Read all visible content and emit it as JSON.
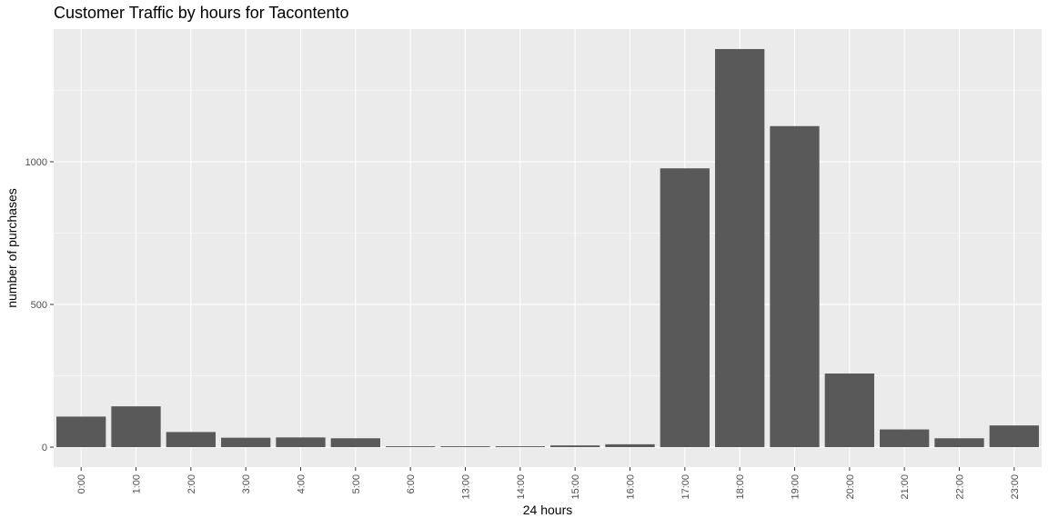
{
  "chart_data": {
    "type": "bar",
    "title": "Customer Traffic by hours for Tacontento",
    "xlabel": "24 hours",
    "ylabel": "number of purchases",
    "categories": [
      "0:00",
      "1:00",
      "2:00",
      "3:00",
      "4:00",
      "5:00",
      "6:00",
      "13:00",
      "14:00",
      "15:00",
      "16:00",
      "17:00",
      "18:00",
      "19:00",
      "20:00",
      "21:00",
      "22:00",
      "23:00"
    ],
    "values": [
      107,
      143,
      53,
      33,
      34,
      31,
      3,
      3,
      3,
      6,
      10,
      977,
      1395,
      1125,
      258,
      62,
      31,
      76
    ],
    "yticks": [
      0,
      500,
      1000
    ],
    "ytick_labels": [
      "0",
      "500",
      "1000"
    ],
    "ylim": [
      -70,
      1465
    ],
    "grid": true,
    "colors": {
      "bar": "#595959",
      "panel": "#ebebeb",
      "grid_major": "#ffffff",
      "tick_text": "#4d4d4d"
    }
  }
}
